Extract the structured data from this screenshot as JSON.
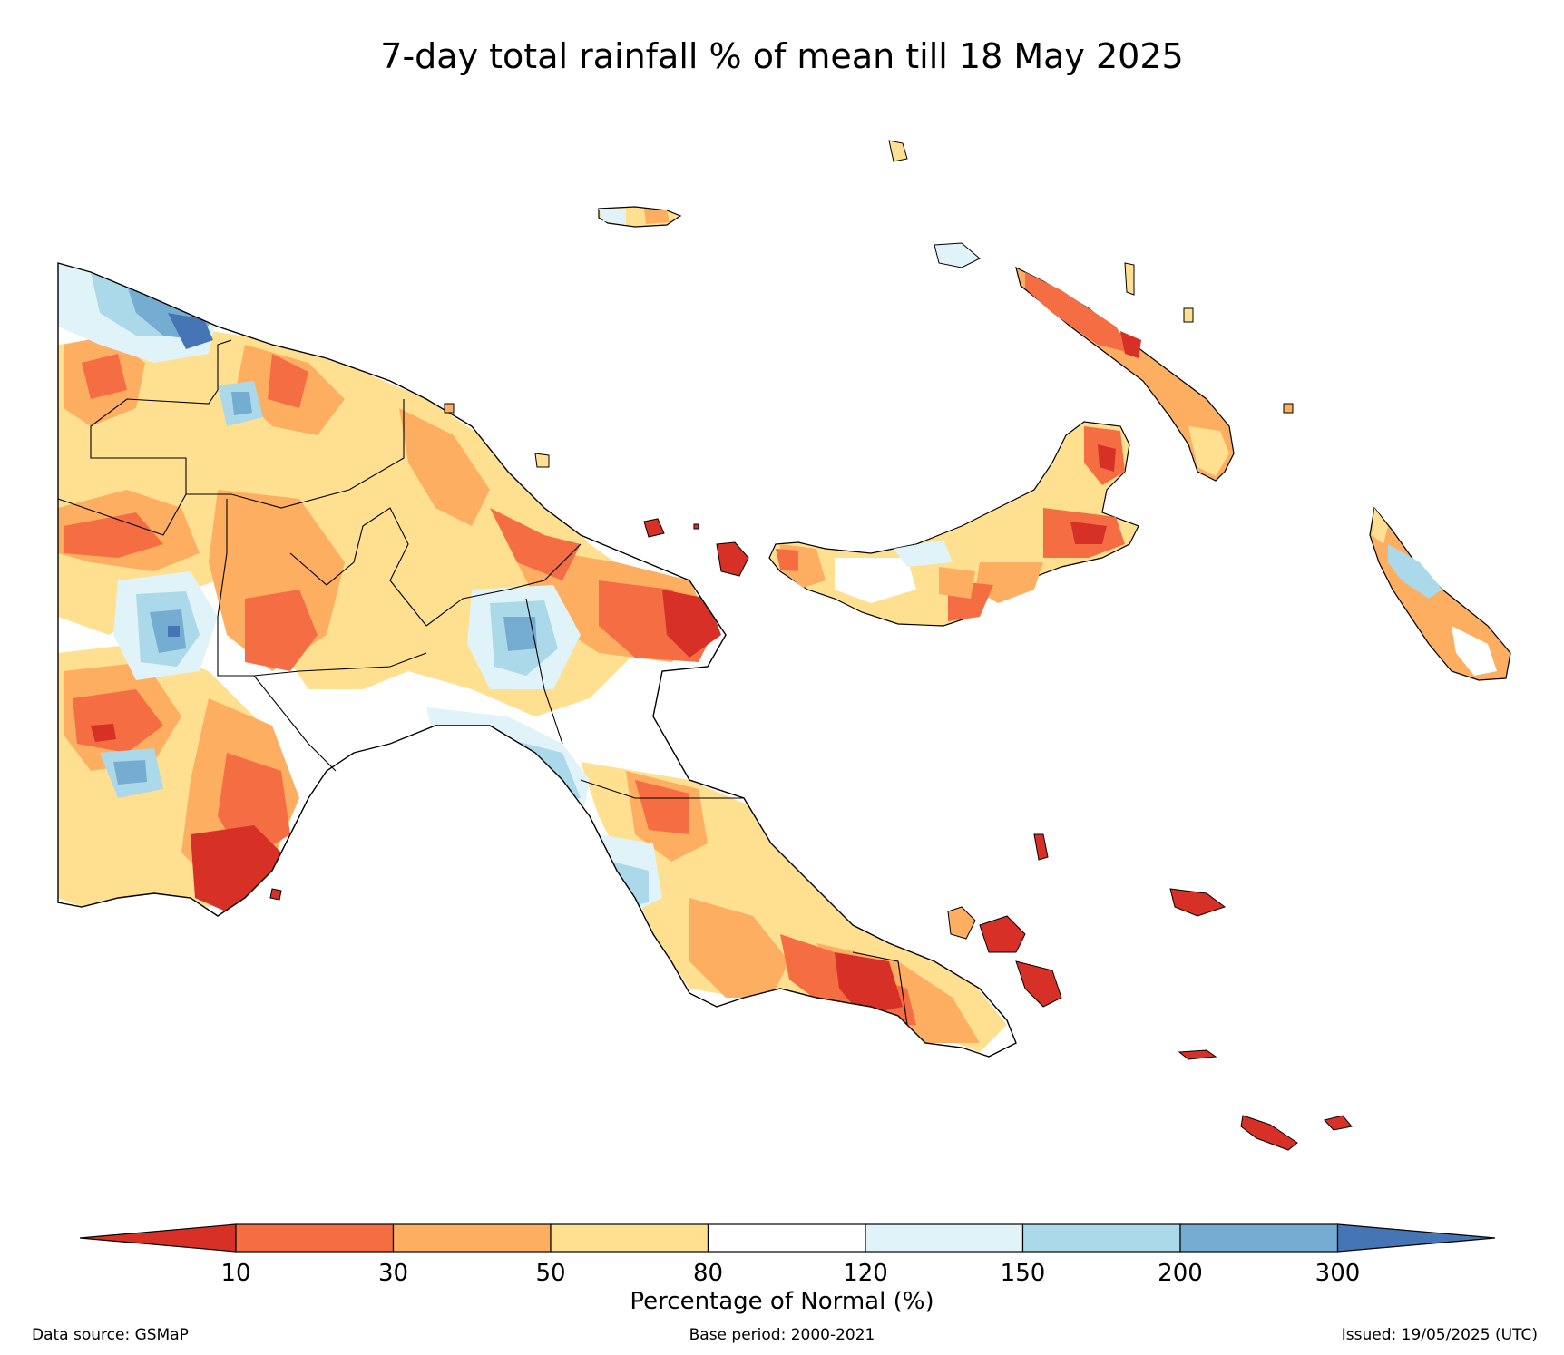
{
  "title": "7-day total rainfall % of mean till 18 May 2025",
  "legend": {
    "label": "Percentage of Normal (%)",
    "ticks": [
      "10",
      "30",
      "50",
      "80",
      "120",
      "150",
      "200",
      "300"
    ],
    "colors": [
      "#d73027",
      "#f46d43",
      "#fdae61",
      "#fee090",
      "#ffffff",
      "#e0f3f8",
      "#abd9e9",
      "#74add1",
      "#4575b4"
    ]
  },
  "footer": {
    "source": "Data source: GSMaP",
    "base_period": "Base period: 2000-2021",
    "issued": "Issued: 19/05/2025 (UTC)"
  }
}
